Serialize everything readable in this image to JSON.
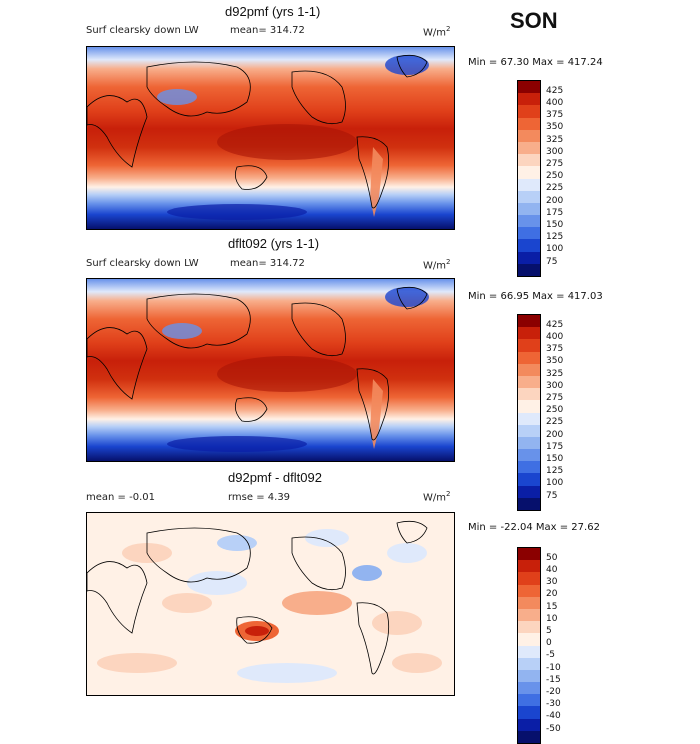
{
  "season": "SON",
  "panels": [
    {
      "title": "d92pmf (yrs 1-1)",
      "field_label": "Surf clearsky down LW",
      "stat_text": "mean= 314.72",
      "units": "W/m",
      "units_sup": "2",
      "min_max": "Min =  67.30 Max = 417.24",
      "colorbar_labels": [
        "425",
        "400",
        "375",
        "350",
        "325",
        "300",
        "275",
        "250",
        "225",
        "200",
        "175",
        "150",
        "125",
        "100",
        "75"
      ],
      "colorbar_colors": [
        "#8b0000",
        "#c8200a",
        "#e0401a",
        "#ee6535",
        "#f38a5d",
        "#f8ae8b",
        "#fcd5bf",
        "#fff1e6",
        "#dfe9fb",
        "#b8d0f7",
        "#92b4f0",
        "#6892ea",
        "#3f6fe3",
        "#1a45cf",
        "#0a1ea6",
        "#06106c"
      ]
    },
    {
      "title": "dflt092 (yrs 1-1)",
      "field_label": "Surf clearsky down LW",
      "stat_text": "mean= 314.72",
      "units": "W/m",
      "units_sup": "2",
      "min_max": "Min =  66.95 Max = 417.03",
      "colorbar_labels": [
        "425",
        "400",
        "375",
        "350",
        "325",
        "300",
        "275",
        "250",
        "225",
        "200",
        "175",
        "150",
        "125",
        "100",
        "75"
      ],
      "colorbar_colors": [
        "#8b0000",
        "#c8200a",
        "#e0401a",
        "#ee6535",
        "#f38a5d",
        "#f8ae8b",
        "#fcd5bf",
        "#fff1e6",
        "#dfe9fb",
        "#b8d0f7",
        "#92b4f0",
        "#6892ea",
        "#3f6fe3",
        "#1a45cf",
        "#0a1ea6",
        "#06106c"
      ]
    },
    {
      "title": "d92pmf - dflt092",
      "mean_text": "mean =   -0.01",
      "rmse_text": "rmse =    4.39",
      "units": "W/m",
      "units_sup": "2",
      "min_max": "Min = -22.04 Max =  27.62",
      "colorbar_labels": [
        "50",
        "40",
        "30",
        "20",
        "15",
        "10",
        "5",
        "0",
        "-5",
        "-10",
        "-15",
        "-20",
        "-30",
        "-40",
        "-50"
      ],
      "colorbar_colors": [
        "#8b0000",
        "#c8200a",
        "#e0401a",
        "#ee6535",
        "#f38a5d",
        "#f8ae8b",
        "#fcd5bf",
        "#fff1e6",
        "#dfe9fb",
        "#b8d0f7",
        "#92b4f0",
        "#6892ea",
        "#3f6fe3",
        "#1a45cf",
        "#0a1ea6",
        "#06106c"
      ]
    }
  ]
}
